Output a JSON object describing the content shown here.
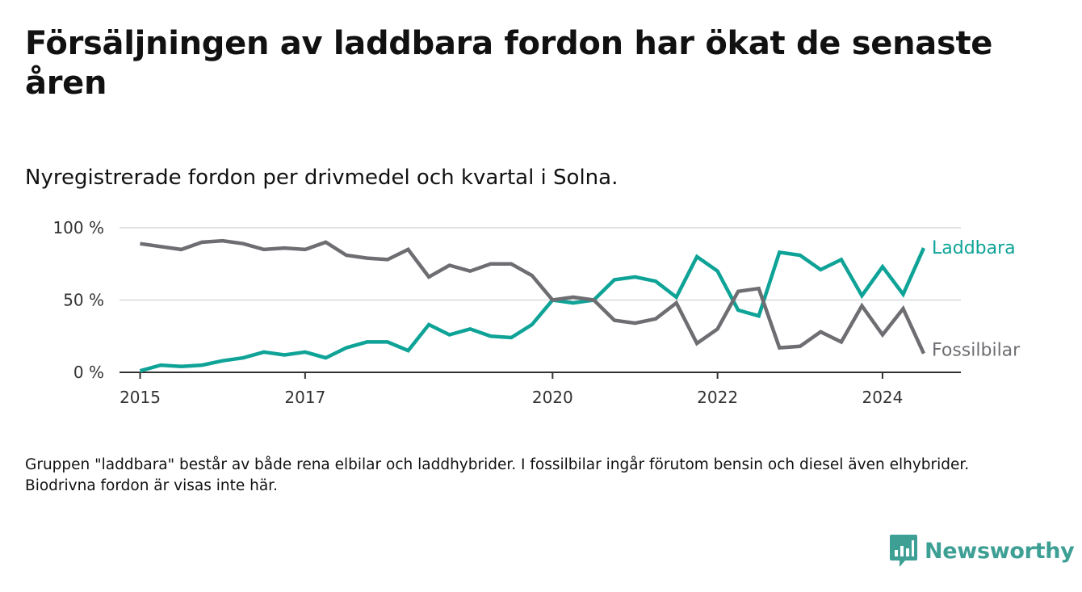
{
  "header": {
    "title": "Försäljningen av laddbara fordon har ökat de senaste åren",
    "subtitle": "Nyregistrerade fordon per drivmedel och kvartal i Solna."
  },
  "footer": {
    "note": "Gruppen \"laddbara\" består av både rena elbilar och laddhybrider. I fossilbilar ingår förutom bensin och diesel även elhybrider. Biodrivna fordon är visas inte här.",
    "brand": "Newsworthy"
  },
  "chart_data": {
    "type": "line",
    "title": "Försäljningen av laddbara fordon har ökat de senaste åren",
    "subtitle": "Nyregistrerade fordon per drivmedel och kvartal i Solna.",
    "xlabel": "",
    "ylabel": "",
    "x_start": 2015.0,
    "x_step": 0.25,
    "xlim": [
      2014.75,
      2024.95
    ],
    "ylim": [
      0,
      100
    ],
    "yticks": [
      {
        "value": 0,
        "label": "0 %"
      },
      {
        "value": 50,
        "label": "50 %"
      },
      {
        "value": 100,
        "label": "100 %"
      }
    ],
    "xticks": [
      {
        "value": 2015,
        "label": "2015"
      },
      {
        "value": 2017,
        "label": "2017"
      },
      {
        "value": 2020,
        "label": "2020"
      },
      {
        "value": 2022,
        "label": "2022"
      },
      {
        "value": 2024,
        "label": "2024"
      }
    ],
    "grid": true,
    "series": [
      {
        "name": "Laddbara",
        "color": "#0fa397",
        "values": [
          1,
          5,
          4,
          5,
          8,
          10,
          14,
          12,
          14,
          10,
          17,
          21,
          21,
          15,
          33,
          26,
          30,
          25,
          24,
          33,
          50,
          48,
          50,
          64,
          66,
          63,
          52,
          80,
          70,
          43,
          39,
          83,
          81,
          71,
          78,
          53,
          73,
          54,
          86
        ]
      },
      {
        "name": "Fossilbilar",
        "color": "#6e6d72",
        "values": [
          89,
          87,
          85,
          90,
          91,
          89,
          85,
          86,
          85,
          90,
          81,
          79,
          78,
          85,
          66,
          74,
          70,
          75,
          75,
          67,
          50,
          52,
          50,
          36,
          34,
          37,
          48,
          20,
          30,
          56,
          58,
          17,
          18,
          28,
          21,
          46,
          26,
          44,
          13
        ]
      }
    ]
  }
}
